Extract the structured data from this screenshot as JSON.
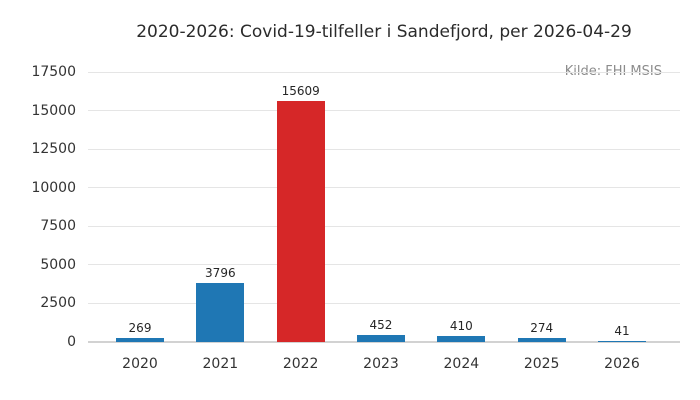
{
  "title": "2020-2026: Covid-19-tilfeller i Sandefjord, per 2026-04-29",
  "source_label": "Kilde: FHI MSIS",
  "colors": {
    "bar_default": "#1f77b4",
    "bar_highlight": "#d62728",
    "gridline": "#e5e5e5",
    "baseline": "#d2d2d2",
    "tick_text": "#333333",
    "title_text": "#2b2b2b",
    "source_text": "#8c8c8c"
  },
  "chart_data": {
    "type": "bar",
    "title": "2020-2026: Covid-19-tilfeller i Sandefjord, per 2026-04-29",
    "categories": [
      "2020",
      "2021",
      "2022",
      "2023",
      "2024",
      "2025",
      "2026"
    ],
    "values": [
      269,
      3796,
      15609,
      452,
      410,
      274,
      41
    ],
    "bar_colors": [
      "#1f77b4",
      "#1f77b4",
      "#d62728",
      "#1f77b4",
      "#1f77b4",
      "#1f77b4",
      "#1f77b4"
    ],
    "data_labels": [
      "269",
      "3796",
      "15609",
      "452",
      "410",
      "274",
      "41"
    ],
    "xlabel": "",
    "ylabel": "",
    "ylim": [
      0,
      17500
    ],
    "yticks": [
      0,
      2500,
      5000,
      7500,
      10000,
      12500,
      15000,
      17500
    ],
    "grid": "horizontal only",
    "legend": "none",
    "annotation": "Kilde: FHI MSIS"
  }
}
